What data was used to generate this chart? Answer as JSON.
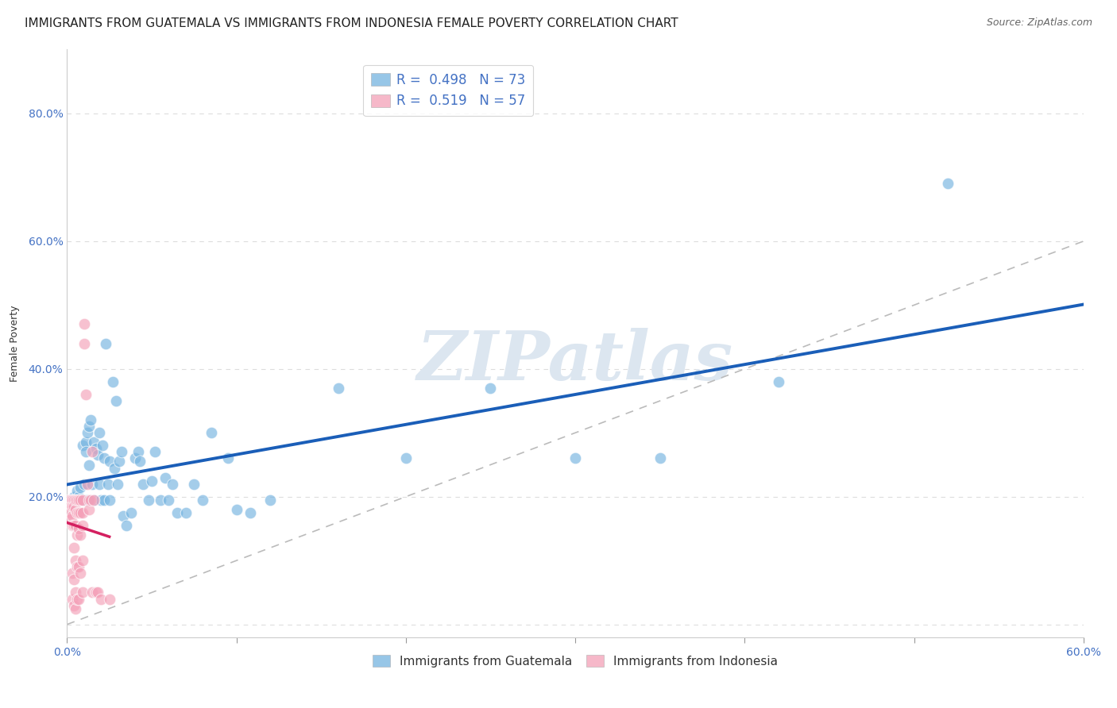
{
  "title": "IMMIGRANTS FROM GUATEMALA VS IMMIGRANTS FROM INDONESIA FEMALE POVERTY CORRELATION CHART",
  "source": "Source: ZipAtlas.com",
  "ylabel": "Female Poverty",
  "xlim": [
    0.0,
    0.6
  ],
  "ylim": [
    -0.02,
    0.9
  ],
  "xticks": [
    0.0,
    0.1,
    0.2,
    0.3,
    0.4,
    0.5,
    0.6
  ],
  "xticklabels": [
    "0.0%",
    "",
    "",
    "",
    "",
    "",
    "60.0%"
  ],
  "yticks": [
    0.0,
    0.2,
    0.4,
    0.6,
    0.8
  ],
  "yticklabels": [
    "",
    "20.0%",
    "40.0%",
    "60.0%",
    "80.0%"
  ],
  "legend_labels": [
    "Immigrants from Guatemala",
    "Immigrants from Indonesia"
  ],
  "guatemala_color": "#74b3e0",
  "indonesia_color": "#f4a0b8",
  "guatemala_R": 0.498,
  "guatemala_N": 73,
  "indonesia_R": 0.519,
  "indonesia_N": 57,
  "guatemala_line_color": "#1a5eb8",
  "indonesia_line_color": "#d42060",
  "guatemala_scatter": [
    [
      0.003,
      0.195
    ],
    [
      0.004,
      0.2
    ],
    [
      0.005,
      0.195
    ],
    [
      0.005,
      0.19
    ],
    [
      0.006,
      0.21
    ],
    [
      0.006,
      0.195
    ],
    [
      0.007,
      0.195
    ],
    [
      0.007,
      0.2
    ],
    [
      0.008,
      0.215
    ],
    [
      0.008,
      0.195
    ],
    [
      0.009,
      0.28
    ],
    [
      0.009,
      0.195
    ],
    [
      0.01,
      0.195
    ],
    [
      0.01,
      0.22
    ],
    [
      0.011,
      0.285
    ],
    [
      0.011,
      0.27
    ],
    [
      0.012,
      0.3
    ],
    [
      0.012,
      0.195
    ],
    [
      0.013,
      0.31
    ],
    [
      0.013,
      0.25
    ],
    [
      0.014,
      0.32
    ],
    [
      0.015,
      0.195
    ],
    [
      0.015,
      0.22
    ],
    [
      0.016,
      0.285
    ],
    [
      0.016,
      0.195
    ],
    [
      0.017,
      0.275
    ],
    [
      0.018,
      0.265
    ],
    [
      0.019,
      0.3
    ],
    [
      0.019,
      0.22
    ],
    [
      0.02,
      0.195
    ],
    [
      0.021,
      0.28
    ],
    [
      0.022,
      0.26
    ],
    [
      0.022,
      0.195
    ],
    [
      0.023,
      0.44
    ],
    [
      0.024,
      0.22
    ],
    [
      0.025,
      0.195
    ],
    [
      0.025,
      0.255
    ],
    [
      0.027,
      0.38
    ],
    [
      0.028,
      0.245
    ],
    [
      0.029,
      0.35
    ],
    [
      0.03,
      0.22
    ],
    [
      0.031,
      0.255
    ],
    [
      0.032,
      0.27
    ],
    [
      0.033,
      0.17
    ],
    [
      0.035,
      0.155
    ],
    [
      0.038,
      0.175
    ],
    [
      0.04,
      0.26
    ],
    [
      0.042,
      0.27
    ],
    [
      0.043,
      0.255
    ],
    [
      0.045,
      0.22
    ],
    [
      0.048,
      0.195
    ],
    [
      0.05,
      0.225
    ],
    [
      0.052,
      0.27
    ],
    [
      0.055,
      0.195
    ],
    [
      0.058,
      0.23
    ],
    [
      0.06,
      0.195
    ],
    [
      0.062,
      0.22
    ],
    [
      0.065,
      0.175
    ],
    [
      0.07,
      0.175
    ],
    [
      0.075,
      0.22
    ],
    [
      0.08,
      0.195
    ],
    [
      0.085,
      0.3
    ],
    [
      0.095,
      0.26
    ],
    [
      0.1,
      0.18
    ],
    [
      0.108,
      0.175
    ],
    [
      0.12,
      0.195
    ],
    [
      0.16,
      0.37
    ],
    [
      0.2,
      0.26
    ],
    [
      0.25,
      0.37
    ],
    [
      0.3,
      0.26
    ],
    [
      0.35,
      0.26
    ],
    [
      0.42,
      0.38
    ],
    [
      0.52,
      0.69
    ]
  ],
  "indonesia_scatter": [
    [
      0.001,
      0.195
    ],
    [
      0.001,
      0.19
    ],
    [
      0.002,
      0.195
    ],
    [
      0.002,
      0.185
    ],
    [
      0.002,
      0.175
    ],
    [
      0.002,
      0.165
    ],
    [
      0.003,
      0.195
    ],
    [
      0.003,
      0.185
    ],
    [
      0.003,
      0.17
    ],
    [
      0.003,
      0.155
    ],
    [
      0.003,
      0.08
    ],
    [
      0.003,
      0.04
    ],
    [
      0.004,
      0.195
    ],
    [
      0.004,
      0.185
    ],
    [
      0.004,
      0.155
    ],
    [
      0.004,
      0.12
    ],
    [
      0.004,
      0.07
    ],
    [
      0.004,
      0.03
    ],
    [
      0.005,
      0.195
    ],
    [
      0.005,
      0.18
    ],
    [
      0.005,
      0.155
    ],
    [
      0.005,
      0.1
    ],
    [
      0.005,
      0.05
    ],
    [
      0.005,
      0.025
    ],
    [
      0.006,
      0.195
    ],
    [
      0.006,
      0.175
    ],
    [
      0.006,
      0.14
    ],
    [
      0.006,
      0.09
    ],
    [
      0.006,
      0.04
    ],
    [
      0.007,
      0.195
    ],
    [
      0.007,
      0.175
    ],
    [
      0.007,
      0.15
    ],
    [
      0.007,
      0.09
    ],
    [
      0.007,
      0.04
    ],
    [
      0.008,
      0.195
    ],
    [
      0.008,
      0.175
    ],
    [
      0.008,
      0.14
    ],
    [
      0.008,
      0.08
    ],
    [
      0.009,
      0.195
    ],
    [
      0.009,
      0.175
    ],
    [
      0.009,
      0.155
    ],
    [
      0.009,
      0.1
    ],
    [
      0.009,
      0.05
    ],
    [
      0.01,
      0.47
    ],
    [
      0.01,
      0.44
    ],
    [
      0.011,
      0.36
    ],
    [
      0.012,
      0.22
    ],
    [
      0.013,
      0.195
    ],
    [
      0.013,
      0.18
    ],
    [
      0.014,
      0.195
    ],
    [
      0.015,
      0.27
    ],
    [
      0.015,
      0.05
    ],
    [
      0.016,
      0.195
    ],
    [
      0.017,
      0.05
    ],
    [
      0.018,
      0.05
    ],
    [
      0.02,
      0.04
    ],
    [
      0.025,
      0.04
    ]
  ],
  "background_color": "#ffffff",
  "grid_color": "#dddddd",
  "title_fontsize": 11,
  "axis_label_fontsize": 9,
  "tick_fontsize": 10,
  "tick_color": "#4472c4",
  "watermark_text": "ZIPatlas",
  "watermark_color": "#dce6f0"
}
